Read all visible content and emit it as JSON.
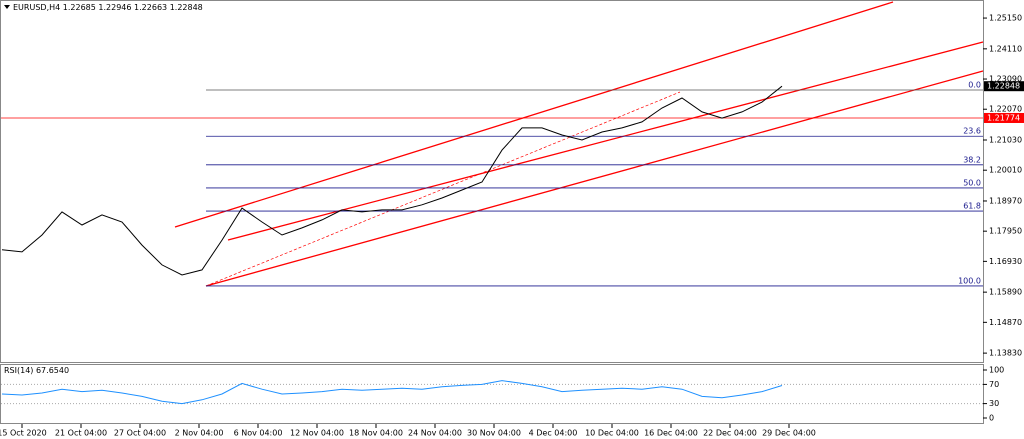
{
  "header": {
    "symbol": "EURUSD,H4",
    "ohlc": [
      1.22685,
      1.22946,
      1.22663,
      1.22848
    ]
  },
  "chart_data": [
    {
      "type": "line",
      "series": [
        {
          "name": "EURUSD",
          "color": "#000000",
          "values": [
            1.1732,
            1.1725,
            1.1782,
            1.186,
            1.1816,
            1.185,
            1.1826,
            1.1748,
            1.1681,
            1.1647,
            1.1664,
            1.1765,
            1.1873,
            1.1826,
            1.1782,
            1.1806,
            1.1833,
            1.1867,
            1.186,
            1.1867,
            1.1867,
            1.1884,
            1.1907,
            1.1934,
            1.1961,
            1.2069,
            1.2144,
            1.2144,
            1.212,
            1.2103,
            1.213,
            1.2144,
            1.2164,
            1.2211,
            1.2245,
            1.2198,
            1.2177,
            1.2198,
            1.2231,
            1.22848
          ]
        }
      ],
      "x_labels": [
        "15 Oct 2020",
        "21 Oct 04:00",
        "27 Oct 04:00",
        "2 Nov 04:00",
        "6 Nov 04:00",
        "12 Nov 04:00",
        "18 Nov 04:00",
        "24 Nov 04:00",
        "30 Nov 04:00",
        "4 Dec 04:00",
        "10 Dec 04:00",
        "16 Dec 04:00",
        "22 Dec 04:00",
        "29 Dec 04:00"
      ],
      "ylim": [
        1.1353,
        1.2576
      ],
      "yticks": [
        {
          "value": 1.2515,
          "label": "1.25150"
        },
        {
          "value": 1.2411,
          "label": "1.24110"
        },
        {
          "value": 1.2309,
          "label": "1.23090"
        },
        {
          "value": 1.2207,
          "label": "1.22070"
        },
        {
          "value": 1.2103,
          "label": "1.21030"
        },
        {
          "value": 1.2001,
          "label": "1.20010"
        },
        {
          "value": 1.1897,
          "label": "1.18970"
        },
        {
          "value": 1.1795,
          "label": "1.17950"
        },
        {
          "value": 1.1693,
          "label": "1.16930"
        },
        {
          "value": 1.1589,
          "label": "1.15890"
        },
        {
          "value": 1.1487,
          "label": "1.14870"
        },
        {
          "value": 1.1383,
          "label": "1.13830"
        }
      ],
      "red_line": 1.21774,
      "fibonacci": {
        "high": 1.2272,
        "low": 1.161,
        "color": "#1a1a8c",
        "levels": [
          {
            "value": 0,
            "label": "0.0"
          },
          23.6,
          38.2,
          {
            "value": 50,
            "label": "50.0"
          },
          61.8,
          {
            "value": 100,
            "label": "100.0"
          }
        ]
      }
    },
    {
      "type": "line",
      "title": "RSI(14)",
      "title_value": {
        "value": 67.654,
        "label": "67.6540"
      },
      "series": [
        {
          "name": "RSI",
          "color": "#1e90ff",
          "values": [
            50,
            48,
            52,
            60,
            55,
            58,
            52,
            45,
            35,
            30,
            38,
            50,
            72,
            60,
            50,
            52,
            55,
            60,
            58,
            60,
            62,
            60,
            65,
            68,
            70,
            78,
            72,
            65,
            55,
            58,
            60,
            62,
            60,
            65,
            60,
            45,
            42,
            48,
            55,
            67.654
          ]
        }
      ],
      "ylim": [
        -12.5,
        112.5
      ],
      "yticks": [
        100,
        70,
        30,
        0
      ],
      "levels": [
        70,
        30
      ]
    }
  ]
}
